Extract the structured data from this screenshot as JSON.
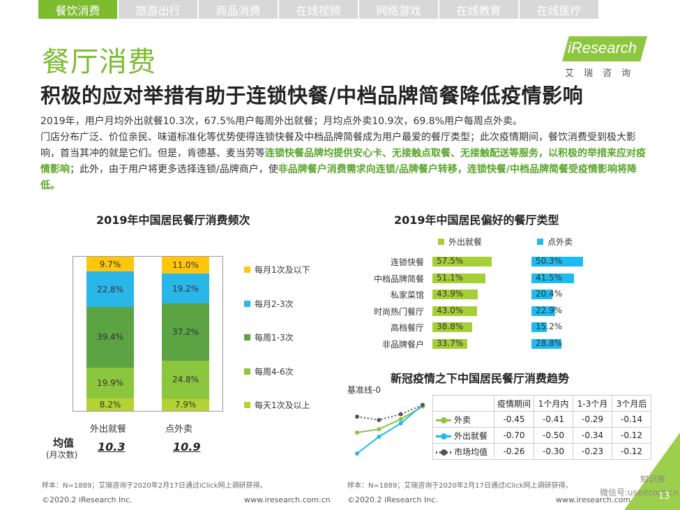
{
  "tabs": [
    "餐饮消费",
    "旅游出行",
    "商品消费",
    "在线视频",
    "网络游戏",
    "在线教育",
    "在线医疗"
  ],
  "title": "餐厅消费",
  "logo": {
    "name": "iResearch",
    "sub": "艾瑞咨询"
  },
  "subtitle": "积极的应对举措有助于连锁快餐/中档品牌简餐降低疫情影响",
  "para": {
    "l1": "2019年，用户月均外出就餐10.3次，67.5%用户每周外出就餐；月均点外卖10.9次，69.8%用户每周点外卖。",
    "l2": "门店分布广泛、价位亲民、味道标准化等优势使得连锁快餐及中档品牌简餐成为用户最爱的餐厅类型；此次疫情期间，餐饮消费受到极大影响，首当其冲的就是它们。但是，肯德基、麦当劳等",
    "l2_hl": "连锁快餐品牌均提供安心卡、无接触点取餐、无接触配送等服务，以积极的举措来应对疫情影响",
    "l3": "；此外，由于用户将更多选择连锁/品牌商户，使",
    "l3_hl": "非品牌餐户消费需求向连锁/品牌餐户转移，连锁快餐/中档品牌简餐受疫情影响将降低。"
  },
  "chart_data": [
    {
      "type": "bar",
      "stacked": true,
      "title": "2019年中国居民餐厅消费频次",
      "categories": [
        "外出就餐",
        "点外卖"
      ],
      "series": [
        {
          "name": "每天1次及以上",
          "values": [
            8.2,
            7.9
          ],
          "labels": [
            "8.2%",
            "7.9%"
          ],
          "color": "#b3d334"
        },
        {
          "name": "每周4-6次",
          "values": [
            19.9,
            24.8
          ],
          "labels": [
            "19.9%",
            "24.8%"
          ],
          "color": "#8cc63f"
        },
        {
          "name": "每周1-3次",
          "values": [
            39.4,
            37.2
          ],
          "labels": [
            "39.4%",
            "37.2%"
          ],
          "color": "#5ba343"
        },
        {
          "name": "每月2-3次",
          "values": [
            22.8,
            19.2
          ],
          "labels": [
            "22.8%",
            "19.2%"
          ],
          "color": "#29b6e8"
        },
        {
          "name": "每月1次及以下",
          "values": [
            9.7,
            11.0
          ],
          "labels": [
            "9.7%",
            "11.0%"
          ],
          "color": "#ffc60b"
        }
      ],
      "avg": {
        "label": "均值",
        "unit": "(月次数)",
        "values": [
          "10.3",
          "10.9"
        ]
      }
    },
    {
      "type": "bar",
      "orientation": "horizontal",
      "title": "2019年中国居民偏好的餐厅类型",
      "categories": [
        "连锁快餐",
        "中档品牌简餐",
        "私家菜馆",
        "时尚热门餐厅",
        "高档餐厅",
        "非品牌餐户"
      ],
      "series": [
        {
          "name": "外出就餐",
          "values": [
            57.5,
            51.1,
            43.9,
            43.0,
            38.8,
            33.7
          ],
          "labels": [
            "57.5%",
            "51.1%",
            "43.9%",
            "43.0%",
            "38.8%",
            "33.7%"
          ],
          "color": "#a5cf39"
        },
        {
          "name": "点外卖",
          "values": [
            50.3,
            41.5,
            20.4,
            22.9,
            15.2,
            28.8
          ],
          "labels": [
            "50.3%",
            "41.5%",
            "20.4%",
            "22.9%",
            "15.2%",
            "28.8%"
          ],
          "color": "#1ebbee"
        }
      ]
    },
    {
      "type": "line",
      "title": "新冠疫情之下中国居民餐厅消费趋势",
      "baseline_label": "基准线-0",
      "categories": [
        "疫情期间",
        "1个月内",
        "1-3个月",
        "3个月后"
      ],
      "series": [
        {
          "name": "外卖",
          "values": [
            -0.45,
            -0.41,
            -0.29,
            -0.14
          ],
          "labels": [
            "-0.45",
            "-0.41",
            "-0.29",
            "-0.14"
          ],
          "color": "#8cc63f"
        },
        {
          "name": "外出就餐",
          "values": [
            -0.7,
            -0.5,
            -0.34,
            -0.12
          ],
          "labels": [
            "-0.70",
            "-0.50",
            "-0.34",
            "-0.12"
          ],
          "color": "#1ebbee"
        },
        {
          "name": "市场均值",
          "values": [
            -0.26,
            -0.3,
            -0.23,
            -0.12
          ],
          "labels": [
            "-0.26",
            "-0.30",
            "-0.23",
            "-0.12"
          ],
          "color": "#555555"
        }
      ]
    }
  ],
  "footnote1": "样本：N=1889；艾瑞咨询于2020年2月17日通过iClick网上调研获得。",
  "footnote2": "样本：N=1889；艾瑞咨询于2020年2月17日通过iClick网上调研获得。",
  "footer": {
    "copyright": "©2020.2 iResearch Inc.",
    "url": "www.iresearch.com.cn",
    "copyright2": "©2020.2 iResearch Inc.",
    "url2": "www.iresearch.com.cn"
  },
  "page_number": "13",
  "watermark": {
    "a": "知识库",
    "b": "微信号:useitcom.cn"
  }
}
